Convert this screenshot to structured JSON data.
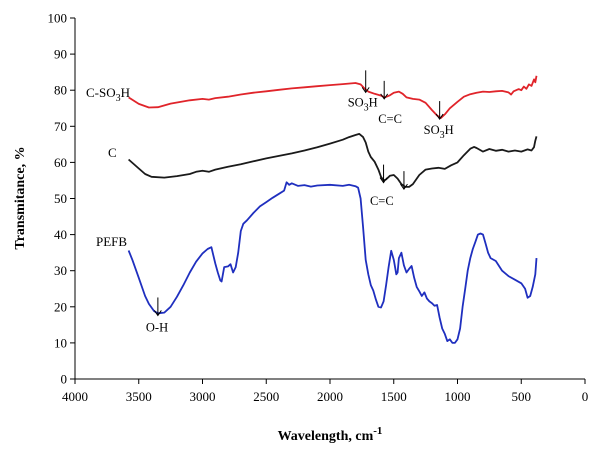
{
  "chart_data": {
    "type": "line",
    "title": "",
    "xlabel": "Wavelength, cm",
    "xlabel_sup": "-1",
    "ylabel": "Transmitance, %",
    "xlim": [
      4000,
      0
    ],
    "ylim": [
      0,
      100
    ],
    "x_reversed": true,
    "xticks": [
      4000,
      3500,
      3000,
      2500,
      2000,
      1500,
      1000,
      500,
      0
    ],
    "yticks": [
      0,
      10,
      20,
      30,
      40,
      50,
      60,
      70,
      80,
      90,
      100
    ],
    "grid": false,
    "series": [
      {
        "name": "C-SO3H",
        "label_parts": [
          "C-SO",
          "3",
          "H"
        ],
        "color": "#e0242a",
        "points": [
          [
            3580,
            78
          ],
          [
            3500,
            76.2
          ],
          [
            3420,
            75.2
          ],
          [
            3350,
            75.3
          ],
          [
            3250,
            76.3
          ],
          [
            3100,
            77.2
          ],
          [
            3000,
            77.6
          ],
          [
            2950,
            77.4
          ],
          [
            2900,
            77.8
          ],
          [
            2800,
            78.2
          ],
          [
            2700,
            78.8
          ],
          [
            2600,
            79.3
          ],
          [
            2500,
            79.7
          ],
          [
            2400,
            80.1
          ],
          [
            2300,
            80.5
          ],
          [
            2200,
            80.8
          ],
          [
            2100,
            81.1
          ],
          [
            2000,
            81.4
          ],
          [
            1900,
            81.7
          ],
          [
            1800,
            82.0
          ],
          [
            1760,
            81.6
          ],
          [
            1730,
            80.5
          ],
          [
            1700,
            79.6
          ],
          [
            1650,
            79.0
          ],
          [
            1600,
            78.5
          ],
          [
            1570,
            78.0
          ],
          [
            1530,
            78.6
          ],
          [
            1500,
            79.3
          ],
          [
            1460,
            79.6
          ],
          [
            1430,
            79.0
          ],
          [
            1400,
            78.0
          ],
          [
            1350,
            77.6
          ],
          [
            1300,
            77.4
          ],
          [
            1250,
            76.5
          ],
          [
            1200,
            74.5
          ],
          [
            1160,
            73.0
          ],
          [
            1130,
            72.3
          ],
          [
            1100,
            73.3
          ],
          [
            1060,
            75.0
          ],
          [
            1000,
            76.8
          ],
          [
            950,
            78.2
          ],
          [
            900,
            78.9
          ],
          [
            850,
            79.3
          ],
          [
            800,
            79.6
          ],
          [
            750,
            79.5
          ],
          [
            700,
            79.7
          ],
          [
            650,
            79.8
          ],
          [
            600,
            79.4
          ],
          [
            580,
            78.8
          ],
          [
            560,
            79.7
          ],
          [
            520,
            80.3
          ],
          [
            500,
            80.0
          ],
          [
            480,
            81.0
          ],
          [
            460,
            80.4
          ],
          [
            440,
            81.6
          ],
          [
            420,
            81.2
          ],
          [
            400,
            83.0
          ],
          [
            390,
            82.2
          ],
          [
            380,
            84.0
          ]
        ]
      },
      {
        "name": "C",
        "label_parts": [
          "C"
        ],
        "color": "#1a1a1a",
        "points": [
          [
            3580,
            60.8
          ],
          [
            3500,
            58.3
          ],
          [
            3450,
            56.8
          ],
          [
            3400,
            56.0
          ],
          [
            3300,
            55.8
          ],
          [
            3200,
            56.2
          ],
          [
            3100,
            56.8
          ],
          [
            3050,
            57.4
          ],
          [
            3000,
            57.7
          ],
          [
            2950,
            57.4
          ],
          [
            2900,
            58.0
          ],
          [
            2800,
            58.8
          ],
          [
            2700,
            59.5
          ],
          [
            2600,
            60.3
          ],
          [
            2500,
            61.1
          ],
          [
            2400,
            61.8
          ],
          [
            2300,
            62.5
          ],
          [
            2200,
            63.3
          ],
          [
            2100,
            64.2
          ],
          [
            2000,
            65.2
          ],
          [
            1900,
            66.3
          ],
          [
            1850,
            67.0
          ],
          [
            1800,
            67.6
          ],
          [
            1770,
            67.9
          ],
          [
            1740,
            67.0
          ],
          [
            1720,
            65.5
          ],
          [
            1700,
            63.0
          ],
          [
            1680,
            61.5
          ],
          [
            1650,
            60.2
          ],
          [
            1620,
            58.0
          ],
          [
            1600,
            56.0
          ],
          [
            1580,
            55.0
          ],
          [
            1560,
            55.3
          ],
          [
            1530,
            56.3
          ],
          [
            1500,
            56.5
          ],
          [
            1470,
            55.5
          ],
          [
            1440,
            54.0
          ],
          [
            1410,
            53.2
          ],
          [
            1380,
            53.2
          ],
          [
            1350,
            54.0
          ],
          [
            1300,
            56.5
          ],
          [
            1250,
            58.0
          ],
          [
            1200,
            58.3
          ],
          [
            1150,
            58.5
          ],
          [
            1100,
            58.2
          ],
          [
            1050,
            59.2
          ],
          [
            1000,
            60.0
          ],
          [
            950,
            62.0
          ],
          [
            900,
            63.8
          ],
          [
            870,
            64.3
          ],
          [
            850,
            64.0
          ],
          [
            800,
            63.0
          ],
          [
            750,
            63.7
          ],
          [
            700,
            63.2
          ],
          [
            650,
            63.5
          ],
          [
            600,
            63.0
          ],
          [
            550,
            63.3
          ],
          [
            500,
            63.0
          ],
          [
            450,
            63.6
          ],
          [
            420,
            63.3
          ],
          [
            400,
            64.2
          ],
          [
            390,
            66.0
          ],
          [
            380,
            67.2
          ]
        ]
      },
      {
        "name": "PEFB",
        "label_parts": [
          "PEFB"
        ],
        "color": "#1f2fbf",
        "points": [
          [
            3580,
            35.6
          ],
          [
            3550,
            33.0
          ],
          [
            3500,
            28.0
          ],
          [
            3450,
            23.0
          ],
          [
            3420,
            20.8
          ],
          [
            3380,
            18.8
          ],
          [
            3350,
            18.2
          ],
          [
            3300,
            18.4
          ],
          [
            3250,
            20.0
          ],
          [
            3200,
            22.8
          ],
          [
            3150,
            26.0
          ],
          [
            3100,
            29.5
          ],
          [
            3050,
            32.5
          ],
          [
            3000,
            34.8
          ],
          [
            2960,
            36.0
          ],
          [
            2930,
            36.5
          ],
          [
            2920,
            35.0
          ],
          [
            2900,
            32.0
          ],
          [
            2880,
            29.5
          ],
          [
            2860,
            27.3
          ],
          [
            2850,
            27.0
          ],
          [
            2840,
            29.0
          ],
          [
            2830,
            31.0
          ],
          [
            2800,
            31.2
          ],
          [
            2780,
            31.8
          ],
          [
            2760,
            29.5
          ],
          [
            2740,
            31.0
          ],
          [
            2720,
            35.0
          ],
          [
            2700,
            41.0
          ],
          [
            2680,
            43.0
          ],
          [
            2650,
            44.0
          ],
          [
            2600,
            46.0
          ],
          [
            2550,
            47.8
          ],
          [
            2500,
            49.0
          ],
          [
            2450,
            50.2
          ],
          [
            2400,
            51.3
          ],
          [
            2360,
            52.2
          ],
          [
            2340,
            54.5
          ],
          [
            2320,
            53.8
          ],
          [
            2300,
            54.2
          ],
          [
            2250,
            53.5
          ],
          [
            2200,
            53.7
          ],
          [
            2150,
            53.3
          ],
          [
            2100,
            53.6
          ],
          [
            2000,
            53.8
          ],
          [
            1900,
            53.5
          ],
          [
            1850,
            53.8
          ],
          [
            1800,
            53.4
          ],
          [
            1780,
            53.0
          ],
          [
            1760,
            50.0
          ],
          [
            1740,
            42.0
          ],
          [
            1720,
            33.0
          ],
          [
            1700,
            29.0
          ],
          [
            1680,
            26.0
          ],
          [
            1660,
            24.5
          ],
          [
            1640,
            22.0
          ],
          [
            1620,
            20.0
          ],
          [
            1600,
            19.8
          ],
          [
            1580,
            21.5
          ],
          [
            1560,
            26.0
          ],
          [
            1540,
            31.0
          ],
          [
            1520,
            35.5
          ],
          [
            1500,
            33.0
          ],
          [
            1480,
            29.0
          ],
          [
            1470,
            29.5
          ],
          [
            1460,
            33.5
          ],
          [
            1440,
            35.0
          ],
          [
            1420,
            31.5
          ],
          [
            1400,
            29.5
          ],
          [
            1380,
            30.5
          ],
          [
            1360,
            31.3
          ],
          [
            1340,
            28.0
          ],
          [
            1320,
            25.5
          ],
          [
            1300,
            24.3
          ],
          [
            1280,
            23.0
          ],
          [
            1260,
            24.0
          ],
          [
            1240,
            22.3
          ],
          [
            1220,
            21.5
          ],
          [
            1200,
            21.0
          ],
          [
            1180,
            20.3
          ],
          [
            1160,
            20.5
          ],
          [
            1140,
            17.0
          ],
          [
            1120,
            14.0
          ],
          [
            1100,
            12.5
          ],
          [
            1080,
            10.5
          ],
          [
            1060,
            11.0
          ],
          [
            1040,
            10.0
          ],
          [
            1020,
            10.0
          ],
          [
            1000,
            11.0
          ],
          [
            980,
            14.0
          ],
          [
            960,
            20.0
          ],
          [
            940,
            25.0
          ],
          [
            920,
            30.0
          ],
          [
            900,
            33.5
          ],
          [
            880,
            36.0
          ],
          [
            860,
            38.0
          ],
          [
            840,
            40.0
          ],
          [
            820,
            40.3
          ],
          [
            800,
            40.0
          ],
          [
            780,
            37.5
          ],
          [
            760,
            35.0
          ],
          [
            740,
            33.5
          ],
          [
            700,
            32.7
          ],
          [
            650,
            30.0
          ],
          [
            600,
            28.5
          ],
          [
            550,
            27.5
          ],
          [
            500,
            26.5
          ],
          [
            470,
            25.0
          ],
          [
            450,
            22.5
          ],
          [
            430,
            23.0
          ],
          [
            410,
            25.5
          ],
          [
            390,
            29.0
          ],
          [
            380,
            33.5
          ]
        ]
      }
    ],
    "annotations": [
      {
        "id": "so3h-a",
        "text_parts": [
          "SO",
          "3",
          "H"
        ],
        "at_x": 1720,
        "at_y": 79.4
      },
      {
        "id": "cc-a",
        "text_parts": [
          "C=C"
        ],
        "at_x": 1575,
        "at_y": 77.6
      },
      {
        "id": "so3h-b",
        "text_parts": [
          "SO",
          "3",
          "H"
        ],
        "at_x": 1140,
        "at_y": 72.0
      },
      {
        "id": "cc-b-left",
        "text_parts": [
          ""
        ],
        "at_x": 1580,
        "at_y": 54.4
      },
      {
        "id": "cc-b",
        "text_parts": [
          "C=C"
        ],
        "at_x": 1420,
        "at_y": 52.6
      },
      {
        "id": "oh",
        "text_parts": [
          "O-H"
        ],
        "at_x": 3350,
        "at_y": 17.6
      }
    ]
  }
}
